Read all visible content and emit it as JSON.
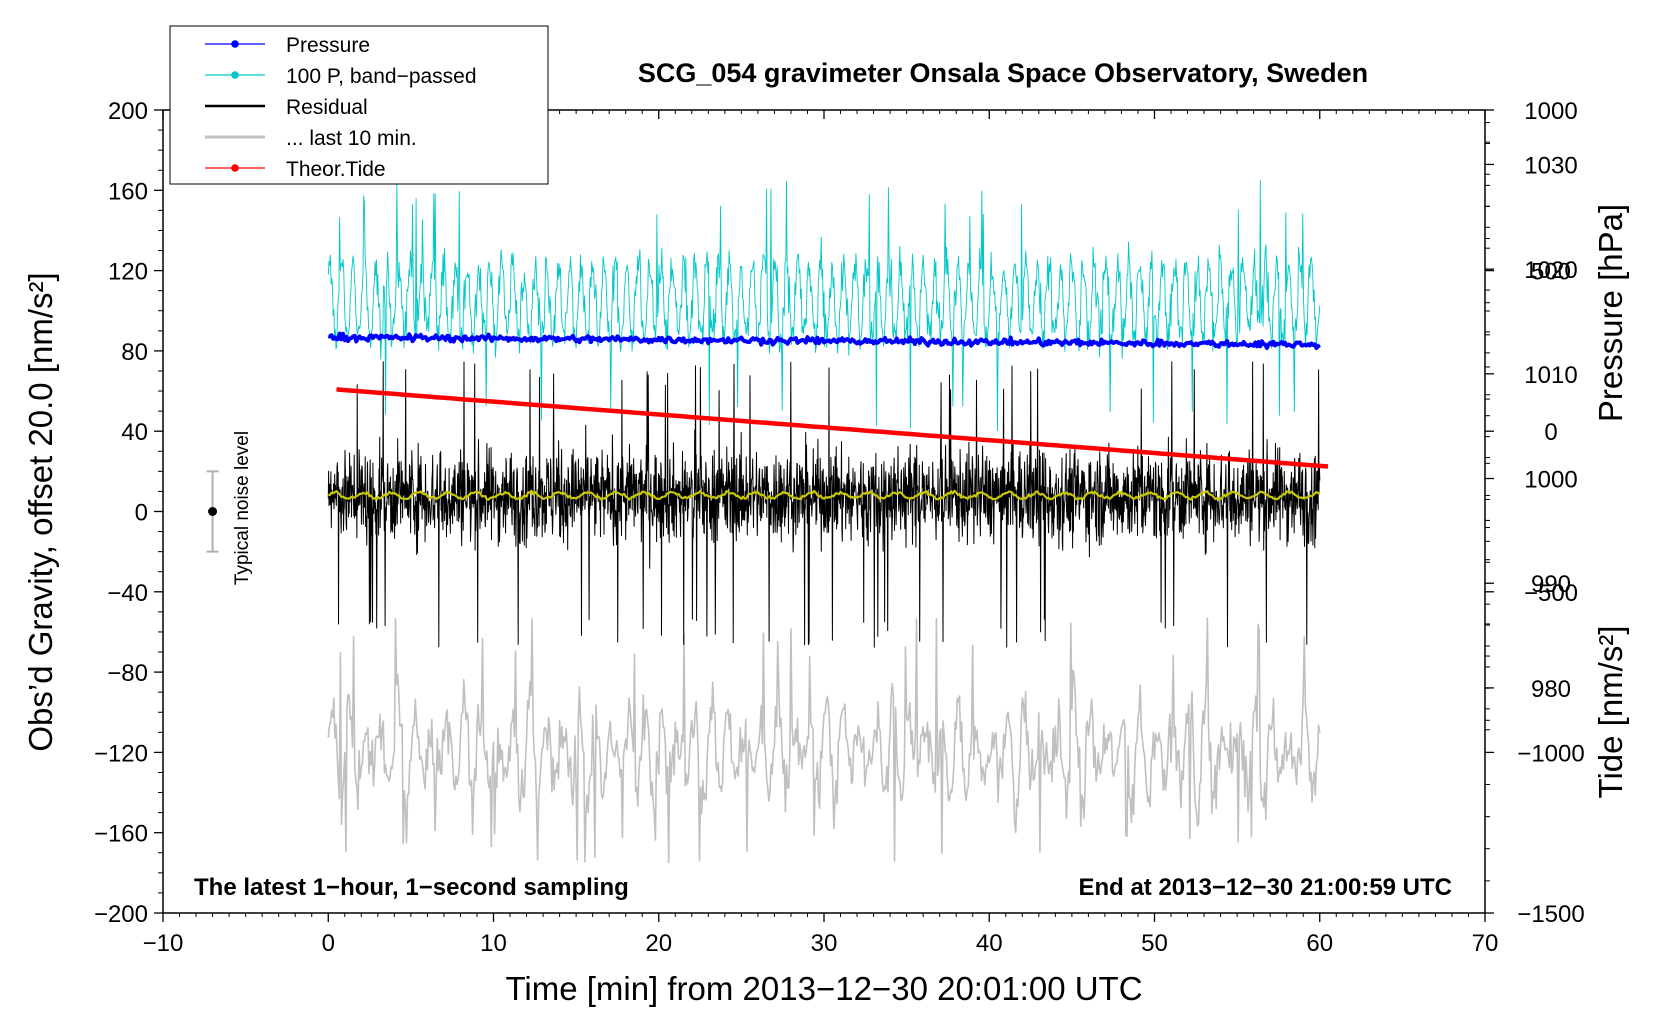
{
  "chart_data": {
    "type": "line",
    "title": "SCG_054 gravimeter Onsala Space Observatory, Sweden",
    "xlabel": "Time [min] from 2013−12−30 20:01:00 UTC",
    "ylabel": "Obs’d Gravity, offset 20.0 [nm/s²]",
    "ylabel_right_top": "Pressure [hPa]",
    "ylabel_right_bottom": "Tide [nm/s²]",
    "xlim": [
      -10,
      70
    ],
    "ylim": [
      -200,
      200
    ],
    "pressure_axis_range": [
      958.5,
      1035.2
    ],
    "tide_axis_range": [
      -1500,
      1000
    ],
    "x_ticks": [
      -10,
      0,
      10,
      20,
      30,
      40,
      50,
      60,
      70
    ],
    "x_tick_labels": [
      "−10",
      "0",
      "10",
      "20",
      "30",
      "40",
      "50",
      "60",
      "70"
    ],
    "y_ticks": [
      -200,
      -160,
      -120,
      -80,
      -40,
      0,
      40,
      80,
      120,
      160,
      200
    ],
    "y_tick_labels": [
      "−200",
      "−160",
      "−120",
      "−80",
      "−40",
      "0",
      "40",
      "80",
      "120",
      "160",
      "200"
    ],
    "pressure_ticks": [
      980,
      990,
      1000,
      1010,
      1020,
      1030
    ],
    "pressure_tick_labels": [
      "980",
      "990",
      "1000",
      "1010",
      "1020",
      "1030"
    ],
    "tide_ticks": [
      -1500,
      -1000,
      -500,
      0,
      500,
      1000
    ],
    "tide_tick_labels": [
      "−1500",
      "−1000",
      "−500",
      "0",
      "500",
      "1000"
    ],
    "legend": {
      "position": "top-left",
      "entries": [
        {
          "label": "Pressure",
          "color": "#0000ff",
          "style": "line-dot"
        },
        {
          "label": "100 P, band−passed",
          "color": "#00c8c8",
          "style": "line-dot"
        },
        {
          "label": "Residual",
          "color": "#000000",
          "style": "line"
        },
        {
          "label": "... last 10 min.",
          "color": "#c0c0c0",
          "style": "line"
        },
        {
          "label": "Theor.Tide",
          "color": "#ff0000",
          "style": "line-dot"
        }
      ]
    },
    "annotations": {
      "bottom_left": "The latest 1−hour, 1−second sampling",
      "bottom_right": "End at 2013−12−30 21:00:59 UTC",
      "noise_label": "Typical noise level"
    },
    "noise_level": {
      "x": -7,
      "center": 0,
      "half_range": 20
    },
    "series": [
      {
        "name": "Pressure",
        "axis": "pressure",
        "color": "#0000ff",
        "x_range": [
          0,
          60
        ],
        "start": 1013.5,
        "end": 1012.8,
        "jitter": 0.3
      },
      {
        "name": "100 P, band−passed",
        "axis": "gravity",
        "color": "#00c8c8",
        "x_range": [
          0,
          60
        ],
        "center": 105,
        "amplitude": 22,
        "spike_max": 165,
        "spike_min": 40
      },
      {
        "name": "Residual",
        "axis": "gravity",
        "color": "#000000",
        "x_range": [
          0,
          60
        ],
        "center": 8,
        "amplitude": 22,
        "spike_max": 75,
        "spike_min": -68
      },
      {
        "name": "Residual (smoothed)",
        "axis": "gravity",
        "color": "#c8c800",
        "x_range": [
          0,
          60
        ],
        "center": 8,
        "amplitude": 1.5
      },
      {
        "name": "... last 10 min.",
        "axis": "gravity",
        "color": "#c0c0c0",
        "x_range": [
          0,
          60
        ],
        "center": -120,
        "amplitude": 28,
        "spike_max": -53,
        "spike_min": -175
      },
      {
        "name": "Theor.Tide",
        "axis": "tide",
        "color": "#ff0000",
        "x_range": [
          0.5,
          60.5
        ],
        "start": 130,
        "end": -110
      }
    ]
  }
}
